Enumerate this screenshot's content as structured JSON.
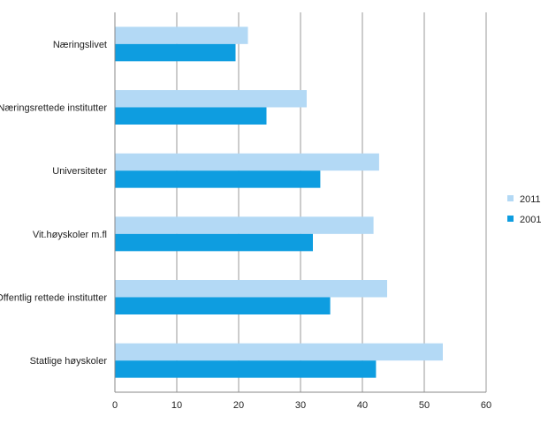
{
  "chart_data": {
    "type": "bar",
    "orientation": "horizontal",
    "title": "",
    "xlabel": "",
    "ylabel": "",
    "categories": [
      "Næringslivet",
      "Næringsrettede institutter",
      "Universiteter",
      "Vit.høyskoler m.fl",
      "Offentlig rettede institutter",
      "Statlige høyskoler"
    ],
    "series": [
      {
        "name": "2011",
        "color": "#b3d9f5",
        "values": [
          21.5,
          31,
          42.7,
          41.8,
          44,
          53
        ]
      },
      {
        "name": "2001",
        "color": "#0e9de0",
        "values": [
          19.5,
          24.5,
          33.2,
          32,
          34.8,
          42.2
        ]
      }
    ],
    "xlim": [
      0,
      60
    ],
    "xticks": [
      "0",
      "10",
      "20",
      "30",
      "40",
      "50",
      "60"
    ],
    "grid": true,
    "legend_position": "right",
    "legend": [
      "2011",
      "2001"
    ]
  }
}
